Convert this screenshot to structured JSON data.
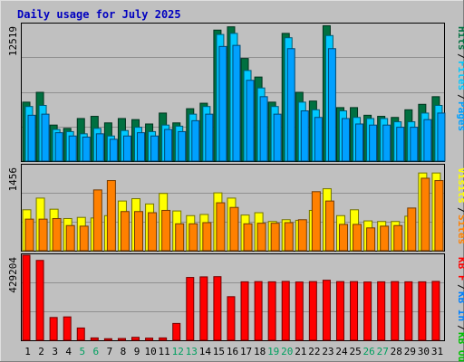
{
  "title": "Daily usage for July 2025",
  "colors": {
    "background": "#c0c0c0",
    "plot_bg": "#c0c0c0",
    "border_light": "#e0e0e0",
    "border_dark": "#808080",
    "frame": "#000000",
    "title": "#0000c0",
    "label": "#000000",
    "weekend_label": "#00a060",
    "grid": "#909090",
    "hits": "#007040",
    "files": "#00c8ff",
    "pages": "#00a0ff",
    "visits": "#ffff00",
    "sites": "#ff8000",
    "kbf": "#ff0000",
    "kbin": "#0080ff",
    "kbout": "#00c000"
  },
  "chart_data": [
    {
      "type": "bar",
      "panel": "hits-files-pages",
      "max_label": "12519",
      "legend": [
        {
          "text": "Hits",
          "color": "#007040"
        },
        {
          "text": "Files",
          "color": "#00c8ff"
        },
        {
          "text": "Pages",
          "color": "#00a0ff"
        }
      ],
      "categories": [
        "1",
        "2",
        "3",
        "4",
        "5",
        "6",
        "7",
        "8",
        "9",
        "10",
        "11",
        "12",
        "13",
        "14",
        "15",
        "16",
        "17",
        "18",
        "19",
        "20",
        "21",
        "22",
        "23",
        "24",
        "25",
        "26",
        "27",
        "28",
        "29",
        "30",
        "31"
      ],
      "weekend_categories": [
        "5",
        "6",
        "12",
        "13",
        "19",
        "20",
        "26",
        "27"
      ],
      "ylim": [
        0,
        12519
      ],
      "series": [
        {
          "name": "Hits",
          "values": [
            5400,
            6300,
            3300,
            3000,
            3900,
            4100,
            3500,
            3900,
            3800,
            3400,
            4400,
            3500,
            4800,
            5300,
            12000,
            12300,
            9400,
            7700,
            5400,
            11700,
            6300,
            5500,
            12400,
            4900,
            4900,
            4200,
            4100,
            4000,
            4700,
            5200,
            5900
          ]
        },
        {
          "name": "Files",
          "values": [
            5000,
            5100,
            2900,
            2700,
            2500,
            3000,
            2300,
            2800,
            3100,
            2700,
            3300,
            3200,
            4300,
            5000,
            11600,
            11700,
            8300,
            6700,
            5000,
            11300,
            5400,
            4700,
            11500,
            4600,
            4000,
            3900,
            3900,
            3600,
            3600,
            4400,
            5100
          ]
        },
        {
          "name": "Pages",
          "values": [
            4200,
            4300,
            2600,
            2300,
            2200,
            2500,
            2000,
            2300,
            2600,
            2300,
            2900,
            2700,
            3700,
            4300,
            10500,
            10600,
            7400,
            5900,
            4300,
            10300,
            4600,
            4000,
            10300,
            3900,
            3400,
            3300,
            3300,
            3100,
            3100,
            3800,
            4400
          ]
        }
      ]
    },
    {
      "type": "bar",
      "panel": "visits-sites",
      "max_label": "1456",
      "legend": [
        {
          "text": "Visits",
          "color": "#ffff00"
        },
        {
          "text": "Sites",
          "color": "#ff8000"
        }
      ],
      "categories": [
        "1",
        "2",
        "3",
        "4",
        "5",
        "6",
        "7",
        "8",
        "9",
        "10",
        "11",
        "12",
        "13",
        "14",
        "15",
        "16",
        "17",
        "18",
        "19",
        "20",
        "21",
        "22",
        "23",
        "24",
        "25",
        "26",
        "27",
        "28",
        "29",
        "30",
        "31"
      ],
      "ylim": [
        0,
        1456
      ],
      "series": [
        {
          "name": "Visits",
          "values": [
            700,
            900,
            710,
            550,
            570,
            560,
            600,
            850,
            890,
            800,
            980,
            680,
            600,
            620,
            990,
            900,
            610,
            650,
            500,
            530,
            520,
            690,
            1060,
            600,
            700,
            510,
            500,
            500,
            590,
            1330,
            1330
          ]
        },
        {
          "name": "Sites",
          "values": [
            540,
            540,
            550,
            430,
            420,
            1040,
            1200,
            670,
            670,
            650,
            690,
            460,
            460,
            480,
            820,
            740,
            460,
            470,
            470,
            480,
            530,
            1010,
            850,
            450,
            450,
            390,
            420,
            430,
            730,
            1240,
            1200
          ]
        }
      ]
    },
    {
      "type": "bar",
      "panel": "kbytes",
      "max_label": "429204",
      "legend": [
        {
          "text": "KB F",
          "color": "#ff0000"
        },
        {
          "text": "KB In",
          "color": "#0080ff"
        },
        {
          "text": "KB Out",
          "color": "#00c000"
        }
      ],
      "categories": [
        "1",
        "2",
        "3",
        "4",
        "5",
        "6",
        "7",
        "8",
        "9",
        "10",
        "11",
        "12",
        "13",
        "14",
        "15",
        "16",
        "17",
        "18",
        "19",
        "20",
        "21",
        "22",
        "23",
        "24",
        "25",
        "26",
        "27",
        "28",
        "29",
        "30",
        "31"
      ],
      "ylim": [
        0,
        429204
      ],
      "series": [
        {
          "name": "KB F",
          "values": [
            429204,
            403000,
            115000,
            118000,
            62000,
            12000,
            8000,
            9000,
            15000,
            11000,
            12000,
            85000,
            317000,
            320000,
            321000,
            220000,
            295000,
            296000,
            295000,
            297000,
            294000,
            296000,
            303000,
            296000,
            296000,
            294000,
            295000,
            296000,
            295000,
            295000,
            297000
          ]
        }
      ]
    }
  ]
}
